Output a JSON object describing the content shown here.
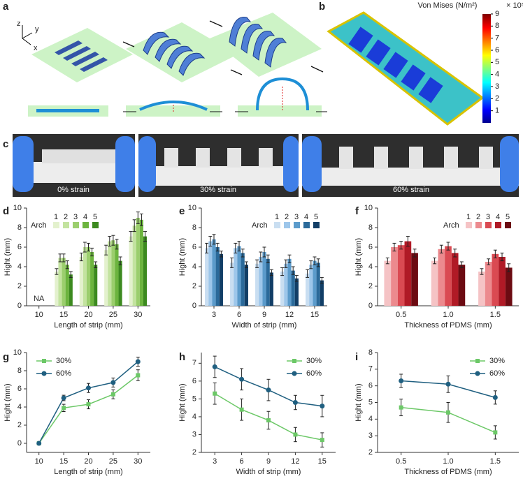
{
  "panels": {
    "a": {
      "label": "a",
      "axis_labels": [
        "z",
        "y",
        "x"
      ]
    },
    "b": {
      "label": "b",
      "colorbar_title": "Von Mises (N/m²)",
      "colorbar_scale": "× 10⁵",
      "colorbar_lim": [
        0,
        9
      ],
      "colorbar_ticks": [
        1,
        2,
        3,
        4,
        5,
        6,
        7,
        8,
        9
      ]
    },
    "c": {
      "label": "c",
      "photo_labels": [
        "0% strain",
        "30% strain",
        "60% strain"
      ]
    }
  },
  "chart_data": [
    {
      "type": "bar",
      "panel_label": "d",
      "xlabel": "Length of strip (mm)",
      "ylabel": "Hight (mm)",
      "legend_title": "Arch",
      "legend": "upper left",
      "annotation": "NA",
      "categories": [
        "10",
        "15",
        "20",
        "25",
        "30"
      ],
      "ylim": [
        0,
        10
      ],
      "yticks": [
        0,
        2,
        4,
        6,
        8,
        10
      ],
      "series": [
        {
          "name": "1",
          "color": "#e3f1cd",
          "values": [
            null,
            3.5,
            5.0,
            5.7,
            7.1
          ],
          "errors": [
            null,
            0.3,
            0.4,
            0.5,
            0.5
          ]
        },
        {
          "name": "2",
          "color": "#c3e39f",
          "values": [
            null,
            4.9,
            6.0,
            6.6,
            8.2
          ],
          "errors": [
            null,
            0.4,
            0.5,
            0.5,
            0.6
          ]
        },
        {
          "name": "3",
          "color": "#9bce6d",
          "values": [
            null,
            4.9,
            6.0,
            6.7,
            9.0
          ],
          "errors": [
            null,
            0.4,
            0.4,
            0.5,
            0.6
          ]
        },
        {
          "name": "4",
          "color": "#6cb43e",
          "values": [
            null,
            4.2,
            5.5,
            6.3,
            8.8
          ],
          "errors": [
            null,
            0.4,
            0.4,
            0.5,
            0.6
          ]
        },
        {
          "name": "5",
          "color": "#3c8a1f",
          "values": [
            null,
            3.2,
            4.2,
            4.6,
            7.1
          ],
          "errors": [
            null,
            0.3,
            0.3,
            0.4,
            0.5
          ]
        }
      ]
    },
    {
      "type": "bar",
      "panel_label": "e",
      "xlabel": "Width of strip (mm)",
      "ylabel": "Hight (mm)",
      "legend_title": "Arch",
      "legend": "upper right",
      "categories": [
        "3",
        "6",
        "9",
        "12",
        "15"
      ],
      "ylim": [
        0,
        10
      ],
      "yticks": [
        0,
        2,
        4,
        6,
        8,
        10
      ],
      "series": [
        {
          "name": "1",
          "color": "#c9def1",
          "values": [
            5.9,
            4.4,
            4.3,
            3.5,
            3.3
          ],
          "errors": [
            0.5,
            0.5,
            0.4,
            0.4,
            0.4
          ]
        },
        {
          "name": "2",
          "color": "#9dc6ea",
          "values": [
            6.6,
            5.9,
            5.0,
            4.3,
            4.2
          ],
          "errors": [
            0.5,
            0.5,
            0.5,
            0.4,
            0.4
          ]
        },
        {
          "name": "3",
          "color": "#5b9bcb",
          "values": [
            6.8,
            6.1,
            5.5,
            4.8,
            4.6
          ],
          "errors": [
            0.5,
            0.5,
            0.5,
            0.4,
            0.4
          ]
        },
        {
          "name": "4",
          "color": "#2b6a9a",
          "values": [
            6.0,
            5.4,
            4.8,
            3.6,
            4.4
          ],
          "errors": [
            0.4,
            0.4,
            0.4,
            0.4,
            0.4
          ]
        },
        {
          "name": "5",
          "color": "#123e66",
          "values": [
            5.3,
            4.2,
            3.4,
            2.8,
            2.6
          ],
          "errors": [
            0.3,
            0.3,
            0.3,
            0.3,
            0.3
          ]
        }
      ]
    },
    {
      "type": "bar",
      "panel_label": "f",
      "xlabel": "Thickness of PDMS (mm)",
      "ylabel": "Hight (mm)",
      "legend_title": "Arch",
      "legend": "upper right",
      "categories": [
        "0.5",
        "1.0",
        "1.5"
      ],
      "ylim": [
        0,
        10
      ],
      "yticks": [
        0,
        2,
        4,
        6,
        8,
        10
      ],
      "series": [
        {
          "name": "1",
          "color": "#f5c3c5",
          "values": [
            4.6,
            4.6,
            3.5
          ],
          "errors": [
            0.3,
            0.3,
            0.3
          ]
        },
        {
          "name": "2",
          "color": "#ec8a8e",
          "values": [
            6.0,
            5.8,
            4.5
          ],
          "errors": [
            0.4,
            0.4,
            0.3
          ]
        },
        {
          "name": "3",
          "color": "#da4a52",
          "values": [
            6.2,
            6.1,
            5.3
          ],
          "errors": [
            0.4,
            0.4,
            0.4
          ]
        },
        {
          "name": "4",
          "color": "#b01a26",
          "values": [
            6.6,
            5.4,
            5.0
          ],
          "errors": [
            0.5,
            0.4,
            0.4
          ]
        },
        {
          "name": "5",
          "color": "#6c0b12",
          "values": [
            5.4,
            4.2,
            3.9
          ],
          "errors": [
            0.4,
            0.3,
            0.4
          ]
        }
      ]
    },
    {
      "type": "line",
      "panel_label": "g",
      "xlabel": "Length of strip (mm)",
      "ylabel": "Hight (mm)",
      "legend": "upper left",
      "categories": [
        "10",
        "15",
        "20",
        "25",
        "30"
      ],
      "ylim": [
        -1,
        10
      ],
      "yticks": [
        0,
        2,
        4,
        6,
        8,
        10
      ],
      "series": [
        {
          "name": "30%",
          "color": "#6cc867",
          "marker": "square",
          "values": [
            0,
            3.9,
            4.3,
            5.4,
            7.5
          ],
          "errors": [
            0,
            0.4,
            0.5,
            0.5,
            0.6
          ]
        },
        {
          "name": "60%",
          "color": "#1f5f80",
          "marker": "circle",
          "values": [
            0,
            5.0,
            6.1,
            6.7,
            9.0
          ],
          "errors": [
            0,
            0.3,
            0.5,
            0.5,
            0.5
          ]
        }
      ]
    },
    {
      "type": "line",
      "panel_label": "h",
      "xlabel": "Width of strip (mm)",
      "ylabel": "Hight (mm)",
      "legend": "upper right",
      "categories": [
        "3",
        "6",
        "9",
        "12",
        "15"
      ],
      "ylim": [
        2,
        7.6
      ],
      "yticks": [
        2,
        3,
        4,
        5,
        6,
        7
      ],
      "series": [
        {
          "name": "30%",
          "color": "#6cc867",
          "marker": "square",
          "values": [
            5.3,
            4.4,
            3.8,
            3.0,
            2.7
          ],
          "errors": [
            0.6,
            0.6,
            0.5,
            0.4,
            0.4
          ]
        },
        {
          "name": "60%",
          "color": "#1f5f80",
          "marker": "circle",
          "values": [
            6.8,
            6.1,
            5.5,
            4.8,
            4.6
          ],
          "errors": [
            0.6,
            0.6,
            0.6,
            0.4,
            0.6
          ]
        }
      ]
    },
    {
      "type": "line",
      "panel_label": "i",
      "xlabel": "Thickness of PDMS (mm)",
      "ylabel": "Hight (mm)",
      "legend": "upper right",
      "categories": [
        "0.5",
        "1.0",
        "1.5"
      ],
      "ylim": [
        2,
        8
      ],
      "yticks": [
        2,
        3,
        4,
        5,
        6,
        7,
        8
      ],
      "series": [
        {
          "name": "30%",
          "color": "#6cc867",
          "marker": "square",
          "values": [
            4.7,
            4.4,
            3.2
          ],
          "errors": [
            0.5,
            0.6,
            0.4
          ]
        },
        {
          "name": "60%",
          "color": "#1f5f80",
          "marker": "circle",
          "values": [
            6.3,
            6.1,
            5.3
          ],
          "errors": [
            0.4,
            0.5,
            0.4
          ]
        }
      ]
    }
  ]
}
